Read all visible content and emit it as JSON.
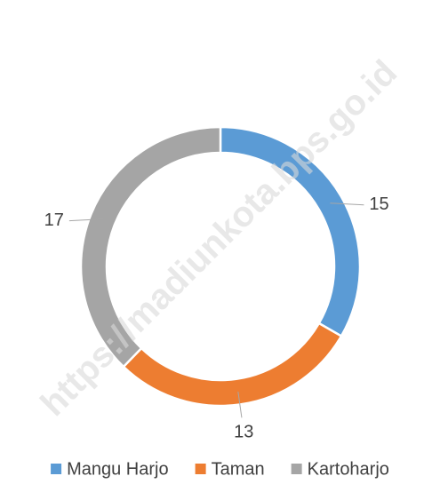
{
  "chart_data": {
    "type": "donut",
    "categories": [
      "Mangu Harjo",
      "Taman",
      "Kartoharjo"
    ],
    "values": [
      15,
      13,
      17
    ],
    "colors": [
      "#5b9bd5",
      "#ed7d31",
      "#a5a5a5"
    ],
    "legend": "bottom",
    "watermark": "https://madiunkota.bps.go.id"
  }
}
